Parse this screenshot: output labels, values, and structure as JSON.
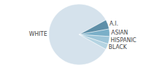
{
  "chart_data": {
    "type": "pie",
    "categories": [
      "WHITE",
      "A.I.",
      "ASIAN",
      "HISPANIC",
      "BLACK"
    ],
    "values": [
      84,
      5,
      4,
      4,
      3
    ],
    "colors": [
      "#d5e2ec",
      "#5e8fa8",
      "#7aafc8",
      "#9dc5d8",
      "#b5d4e2"
    ]
  }
}
